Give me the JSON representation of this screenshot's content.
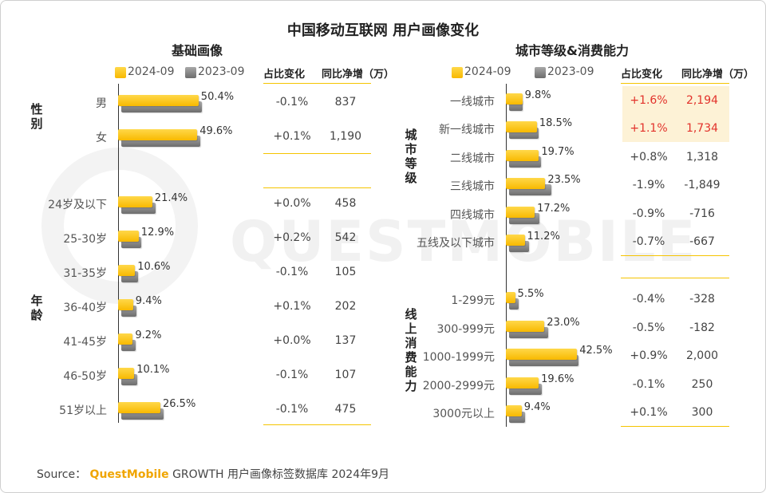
{
  "title": "中国移动互联网 用户画像变化",
  "colors": {
    "accent": "#f8b900",
    "old": "#7a7a7a",
    "highlight_bg": "#fdf2d6",
    "highlight_text": "#e2322b",
    "rule": "#f5c400"
  },
  "watermark": "QUESTMOBILE",
  "left": {
    "subtitle": "基础画像",
    "legend": [
      "2024-09",
      "2023-09"
    ],
    "col_share": "占比变化",
    "col_net": "同比净增（万）",
    "group_gender": "性别",
    "group_age": "年龄",
    "rows": [
      {
        "cat": "男",
        "v2024": 50.4,
        "label": "50.4%",
        "share": "-0.1%",
        "net": "837"
      },
      {
        "cat": "女",
        "v2024": 49.6,
        "label": "49.6%",
        "share": "+0.1%",
        "net": "1,190"
      },
      {
        "cat": "24岁及以下",
        "v2024": 21.4,
        "label": "21.4%",
        "share": "+0.0%",
        "net": "458"
      },
      {
        "cat": "25-30岁",
        "v2024": 12.9,
        "label": "12.9%",
        "share": "+0.2%",
        "net": "542"
      },
      {
        "cat": "31-35岁",
        "v2024": 10.6,
        "label": "10.6%",
        "share": "-0.1%",
        "net": "105"
      },
      {
        "cat": "36-40岁",
        "v2024": 9.4,
        "label": "9.4%",
        "share": "+0.1%",
        "net": "202"
      },
      {
        "cat": "41-45岁",
        "v2024": 9.2,
        "label": "9.2%",
        "share": "+0.0%",
        "net": "137"
      },
      {
        "cat": "46-50岁",
        "v2024": 10.1,
        "label": "10.1%",
        "share": "-0.1%",
        "net": "107"
      },
      {
        "cat": "51岁以上",
        "v2024": 26.5,
        "label": "26.5%",
        "share": "-0.1%",
        "net": "475"
      }
    ]
  },
  "right": {
    "subtitle": "城市等级&消费能力",
    "legend": [
      "2024-09",
      "2023-09"
    ],
    "col_share": "占比变化",
    "col_net": "同比净增（万）",
    "group_city": "城市等级",
    "group_spend": "线上消费能力",
    "rows": [
      {
        "cat": "一线城市",
        "v2024": 9.8,
        "label": "9.8%",
        "share": "+1.6%",
        "net": "2,194",
        "highlight": true
      },
      {
        "cat": "新一线城市",
        "v2024": 18.5,
        "label": "18.5%",
        "share": "+1.1%",
        "net": "1,734",
        "highlight": true
      },
      {
        "cat": "二线城市",
        "v2024": 19.7,
        "label": "19.7%",
        "share": "+0.8%",
        "net": "1,318"
      },
      {
        "cat": "三线城市",
        "v2024": 23.5,
        "label": "23.5%",
        "share": "-1.9%",
        "net": "-1,849"
      },
      {
        "cat": "四线城市",
        "v2024": 17.2,
        "label": "17.2%",
        "share": "-0.9%",
        "net": "-716"
      },
      {
        "cat": "五线及以下城市",
        "v2024": 11.2,
        "label": "11.2%",
        "share": "-0.7%",
        "net": "-667"
      },
      {
        "cat": "1-299元",
        "v2024": 5.5,
        "label": "5.5%",
        "share": "-0.4%",
        "net": "-328"
      },
      {
        "cat": "300-999元",
        "v2024": 23.0,
        "label": "23.0%",
        "share": "-0.5%",
        "net": "-182"
      },
      {
        "cat": "1000-1999元",
        "v2024": 42.5,
        "label": "42.5%",
        "share": "+0.9%",
        "net": "2,000"
      },
      {
        "cat": "2000-2999元",
        "v2024": 19.6,
        "label": "19.6%",
        "share": "-0.1%",
        "net": "250"
      },
      {
        "cat": "3000元以上",
        "v2024": 9.4,
        "label": "9.4%",
        "share": "+0.1%",
        "net": "300"
      }
    ]
  },
  "source": {
    "prefix": "Source：",
    "brand": "QuestMobile",
    "rest": "GROWTH 用户画像标签数据库 2024年9月"
  },
  "chart_data": [
    {
      "type": "bar",
      "title": "基础画像",
      "categories": [
        "男",
        "女",
        "24岁及以下",
        "25-30岁",
        "31-35岁",
        "36-40岁",
        "41-45岁",
        "46-50岁",
        "51岁以上"
      ],
      "series": [
        {
          "name": "2024-09",
          "values": [
            50.4,
            49.6,
            21.4,
            12.9,
            10.6,
            9.4,
            9.2,
            10.1,
            26.5
          ]
        },
        {
          "name": "2023-09",
          "values": [
            50.5,
            49.5,
            21.4,
            12.7,
            10.7,
            9.3,
            9.2,
            10.2,
            26.6
          ]
        }
      ],
      "table": {
        "占比变化": [
          "-0.1%",
          "+0.1%",
          "+0.0%",
          "+0.2%",
          "-0.1%",
          "+0.1%",
          "+0.0%",
          "-0.1%",
          "-0.1%"
        ],
        "同比净增（万）": [
          "837",
          "1,190",
          "458",
          "542",
          "105",
          "202",
          "137",
          "107",
          "475"
        ]
      }
    },
    {
      "type": "bar",
      "title": "城市等级&消费能力",
      "categories": [
        "一线城市",
        "新一线城市",
        "二线城市",
        "三线城市",
        "四线城市",
        "五线及以下城市",
        "1-299元",
        "300-999元",
        "1000-1999元",
        "2000-2999元",
        "3000元以上"
      ],
      "series": [
        {
          "name": "2024-09",
          "values": [
            9.8,
            18.5,
            19.7,
            23.5,
            17.2,
            11.2,
            5.5,
            23.0,
            42.5,
            19.6,
            9.4
          ]
        },
        {
          "name": "2023-09",
          "values": [
            8.2,
            17.4,
            18.9,
            25.4,
            18.1,
            11.9,
            5.9,
            23.5,
            41.6,
            19.7,
            9.3
          ]
        }
      ],
      "table": {
        "占比变化": [
          "+1.6%",
          "+1.1%",
          "+0.8%",
          "-1.9%",
          "-0.9%",
          "-0.7%",
          "-0.4%",
          "-0.5%",
          "+0.9%",
          "-0.1%",
          "+0.1%"
        ],
        "同比净增（万）": [
          "2,194",
          "1,734",
          "1,318",
          "-1,849",
          "-716",
          "-667",
          "-328",
          "-182",
          "2,000",
          "250",
          "300"
        ]
      }
    }
  ]
}
